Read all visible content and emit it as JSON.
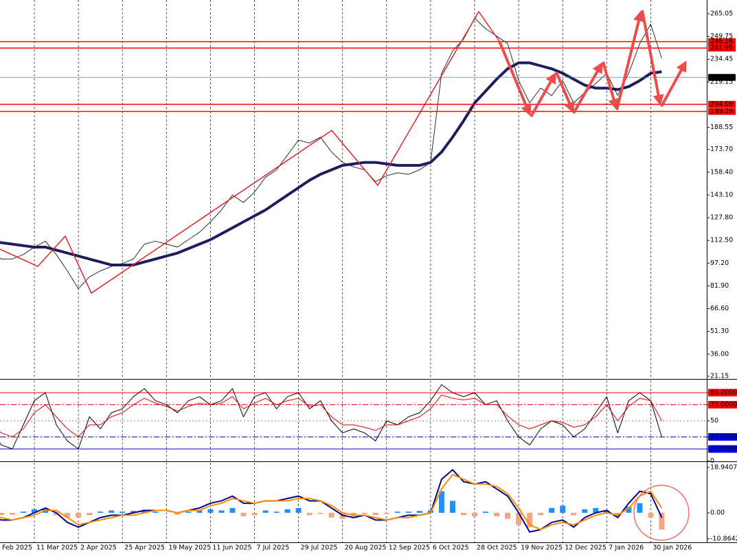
{
  "chart_data": [
    {
      "type": "line",
      "categories": [
        "Feb 2025",
        null,
        null,
        null,
        "11 Mar 2025",
        null,
        null,
        null,
        "2 Apr 2025",
        null,
        null,
        null,
        "25 Apr 2025",
        null,
        null,
        null,
        "19 May 2025",
        null,
        null,
        null,
        "11 Jun 2025",
        null,
        null,
        null,
        "7 Jul 2025",
        null,
        null,
        null,
        "29 Jul 2025",
        null,
        null,
        null,
        "20 Aug 2025",
        null,
        null,
        null,
        "12 Sep 2025",
        null,
        null,
        null,
        "6 Oct 2025",
        null,
        null,
        null,
        "28 Oct 2025",
        null,
        null,
        null,
        "19 Nov 2025",
        null,
        null,
        null,
        "12 Dec 2025",
        null,
        null,
        null,
        "7 Jan 2026",
        null,
        null,
        null,
        "30 Jan 2026",
        null
      ],
      "series": [
        {
          "color": "#2b2b2b",
          "width": 1,
          "values": [
            105,
            100,
            100,
            103,
            108,
            112,
            103,
            92,
            80,
            88,
            92,
            95,
            97,
            100,
            110,
            112,
            110,
            108,
            113,
            118,
            125,
            133,
            143,
            138,
            145,
            155,
            160,
            170,
            180,
            178,
            182,
            172,
            165,
            162,
            160,
            152,
            156,
            158,
            157,
            160,
            165,
            225,
            240,
            248,
            262,
            255,
            250,
            245,
            220,
            205,
            215,
            210,
            220,
            205,
            212,
            218,
            225,
            210,
            225,
            245,
            258,
            235
          ]
        },
        {
          "color": "#1c1c5e",
          "width": 4,
          "values": [
            112,
            111,
            110,
            109,
            108,
            108,
            106,
            104,
            102,
            100,
            98,
            96,
            96,
            96,
            98,
            100,
            102,
            104,
            107,
            110,
            113,
            117,
            121,
            125,
            129,
            133,
            138,
            143,
            148,
            153,
            157,
            160,
            163,
            164,
            165,
            165,
            164,
            163,
            163,
            163,
            165,
            172,
            182,
            193,
            205,
            213,
            221,
            228,
            232,
            232,
            230,
            228,
            225,
            221,
            217,
            215,
            215,
            214,
            216,
            220,
            225,
            226
          ]
        }
      ],
      "hlines": [
        {
          "value": 246.26,
          "color": "#ff0000"
        },
        {
          "value": 241.95,
          "color": "#ff0000"
        },
        {
          "value": 222.21,
          "color": "#4682b4"
        },
        {
          "value": 204.09,
          "color": "#ff0000"
        },
        {
          "value": 199.29,
          "color": "#ff0000"
        }
      ],
      "ylim": [
        19.75,
        274.29
      ],
      "yticks": [
        265.05,
        249.75,
        234.45,
        219.15,
        188.55,
        {
          "value": 173.7,
          "label": "173.70"
        },
        {
          "value": 158.4,
          "label": "158.40"
        },
        {
          "value": 143.1,
          "label": "143.10"
        },
        {
          "value": 127.8,
          "label": "127.80"
        },
        {
          "value": 112.5,
          "label": "112.50"
        },
        {
          "value": 97.2,
          "label": "97.20"
        },
        {
          "value": 81.9,
          "label": "81.90"
        },
        {
          "value": 66.6,
          "label": "66.60"
        },
        {
          "value": 51.3,
          "label": "51.30"
        },
        {
          "value": 36,
          "label": "36.00"
        },
        21.15
      ]
    },
    {
      "type": "line",
      "series": [
        {
          "color": "#000000",
          "width": 1,
          "values": [
            40,
            20,
            15,
            45,
            75,
            85,
            45,
            25,
            15,
            55,
            40,
            60,
            65,
            80,
            90,
            75,
            70,
            60,
            75,
            80,
            70,
            75,
            90,
            55,
            80,
            85,
            65,
            80,
            85,
            65,
            75,
            50,
            35,
            40,
            35,
            25,
            50,
            45,
            55,
            60,
            75,
            95,
            85,
            80,
            85,
            70,
            75,
            50,
            30,
            20,
            40,
            50,
            45,
            30,
            40,
            60,
            80,
            35,
            75,
            85,
            75,
            30
          ]
        },
        {
          "color": "#e00000",
          "width": 1,
          "values": [
            45,
            35,
            30,
            40,
            60,
            70,
            55,
            40,
            30,
            45,
            45,
            55,
            60,
            70,
            78,
            72,
            68,
            62,
            68,
            72,
            70,
            72,
            80,
            65,
            72,
            78,
            70,
            75,
            78,
            68,
            70,
            55,
            45,
            45,
            42,
            38,
            45,
            45,
            50,
            55,
            65,
            82,
            78,
            76,
            78,
            70,
            70,
            56,
            45,
            40,
            45,
            50,
            48,
            42,
            45,
            55,
            70,
            50,
            68,
            78,
            75,
            50
          ]
        }
      ],
      "ylim": [
        0,
        100
      ],
      "yticks": [
        {
          "value": 85,
          "label": "85.0000"
        },
        {
          "value": 70,
          "label": "70.0000"
        },
        50,
        {
          "value": 30,
          "label": "30.0000"
        },
        {
          "value": 15,
          "label": "15.0000"
        },
        0
      ],
      "tick_lines": [
        "solid",
        "dashdot",
        "dot",
        "dashdot",
        "solid",
        "none"
      ],
      "tick_colors": [
        "#ff0000",
        "#ff0000",
        "#808080",
        "#0000ff",
        "#0000ff",
        "#000000"
      ]
    },
    {
      "type": "macd",
      "series": [
        {
          "color": "#00008b",
          "width": 2,
          "values": [
            -2,
            -3,
            -3,
            -2,
            0,
            2,
            0,
            -4,
            -6,
            -4,
            -2,
            -1,
            -1,
            0,
            1,
            1,
            1,
            0,
            1,
            2,
            4,
            5,
            7,
            4,
            4,
            5,
            5,
            6,
            7,
            5,
            5,
            2,
            -1,
            -2,
            -1,
            -3,
            -3,
            -2,
            -1,
            -1,
            0,
            14,
            18,
            13,
            12,
            13,
            10,
            7,
            0,
            -8,
            -7,
            -4,
            -3,
            -6,
            -2,
            0,
            1,
            -2,
            4,
            9,
            8,
            -2
          ]
        },
        {
          "color": "#ff8c00",
          "width": 2,
          "values": [
            -1,
            -2,
            -3,
            -2,
            -1,
            1,
            1,
            -2,
            -5,
            -4,
            -3,
            -2,
            -1,
            -1,
            0,
            1,
            1,
            0,
            1,
            1,
            3,
            4,
            6,
            5,
            4,
            5,
            5,
            5,
            6,
            6,
            5,
            3,
            0,
            -1,
            -1,
            -2,
            -3,
            -2,
            -2,
            -1,
            0,
            10,
            16,
            14,
            12,
            12,
            11,
            8,
            2,
            -5,
            -7,
            -5,
            -4,
            -5,
            -3,
            -1,
            0,
            -1,
            2,
            7,
            9,
            2
          ]
        }
      ],
      "histogram": {
        "colors": [
          "#1e90ff",
          "#f4a582"
        ],
        "values": [
          -0.5,
          -1,
          -0.8,
          0.5,
          1.5,
          1.5,
          -1,
          -2,
          -2,
          -1,
          0.5,
          1,
          0.5,
          0.8,
          1.2,
          0.5,
          0,
          -0.8,
          0.5,
          1,
          1.5,
          1,
          2,
          -1.5,
          -1,
          1,
          0.5,
          1.5,
          2,
          -1,
          -0.5,
          -2,
          -2.5,
          -1.5,
          -0.5,
          -1,
          -0.5,
          0.5,
          0.5,
          0.8,
          1,
          9,
          5,
          -1,
          -1.5,
          0.5,
          -1.5,
          -2.5,
          -5,
          -6,
          -1,
          2,
          3,
          -1,
          1.5,
          2,
          1,
          -1.5,
          2.5,
          4,
          -2,
          -7
        ]
      },
      "ylim": [
        -12.34,
        20.95
      ],
      "yticks": [
        18.9407,
        {
          "value": 0,
          "label": "0.00"
        },
        -10.8642
      ]
    }
  ]
}
